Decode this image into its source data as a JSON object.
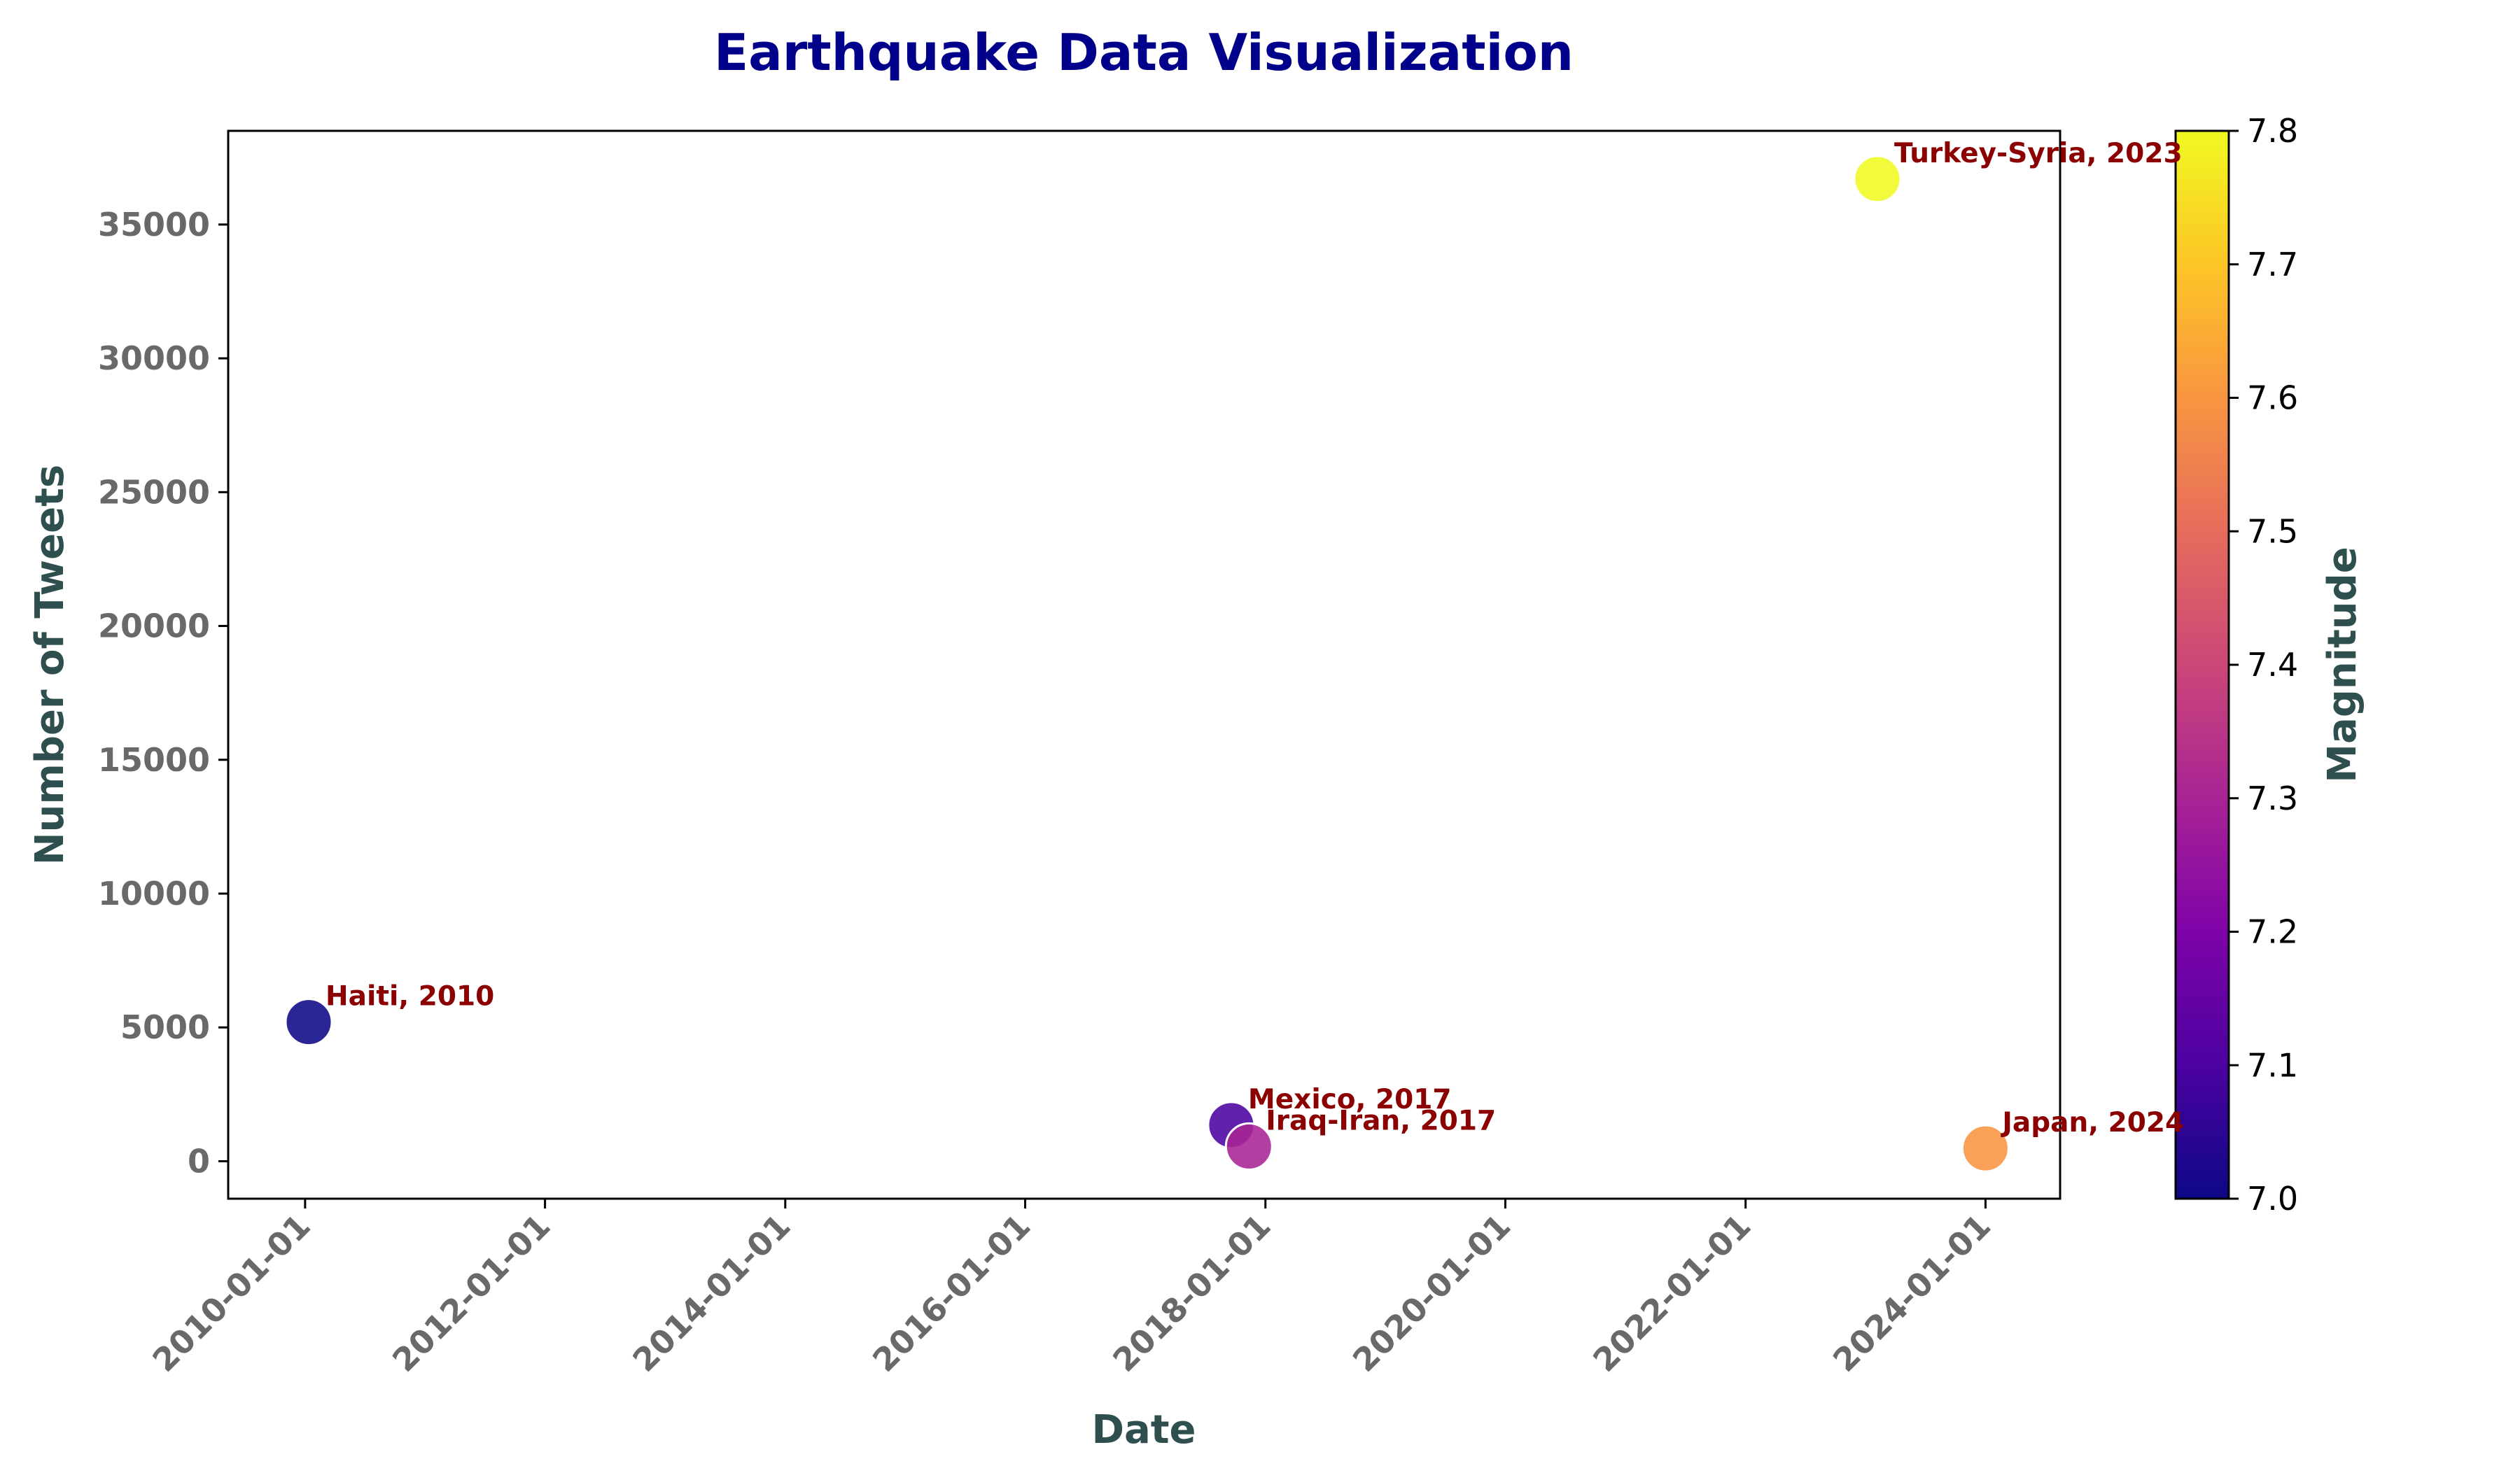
{
  "chart_data": {
    "type": "scatter",
    "title": "Earthquake Data Visualization",
    "xlabel": "Date",
    "ylabel": "Number of Tweets",
    "colorbar_label": "Magnitude",
    "colormap": "plasma",
    "grid": false,
    "x_ticks": [
      "2010-01-01",
      "2012-01-01",
      "2014-01-01",
      "2016-01-01",
      "2018-01-01",
      "2020-01-01",
      "2022-01-01",
      "2024-01-01"
    ],
    "y_ticks": [
      0,
      5000,
      10000,
      15000,
      20000,
      25000,
      30000,
      35000
    ],
    "colorbar_ticks": [
      7.0,
      7.1,
      7.2,
      7.3,
      7.4,
      7.5,
      7.6,
      7.7,
      7.8
    ],
    "xlim": [
      "2009-05-12",
      "2024-08-15"
    ],
    "ylim": [
      -1400,
      38500
    ],
    "clim": [
      7.0,
      7.8
    ],
    "points": [
      {
        "date": "2010-01-12",
        "tweets": 5200,
        "magnitude": 7.0,
        "label": "Haiti, 2010"
      },
      {
        "date": "2017-09-19",
        "tweets": 1350,
        "magnitude": 7.1,
        "label": "Mexico, 2017"
      },
      {
        "date": "2017-11-12",
        "tweets": 550,
        "magnitude": 7.3,
        "label": "Iraq-Iran, 2017"
      },
      {
        "date": "2023-02-06",
        "tweets": 36700,
        "magnitude": 7.8,
        "label": "Turkey-Syria, 2023"
      },
      {
        "date": "2024-01-01",
        "tweets": 480,
        "magnitude": 7.6,
        "label": "Japan, 2024"
      }
    ]
  }
}
